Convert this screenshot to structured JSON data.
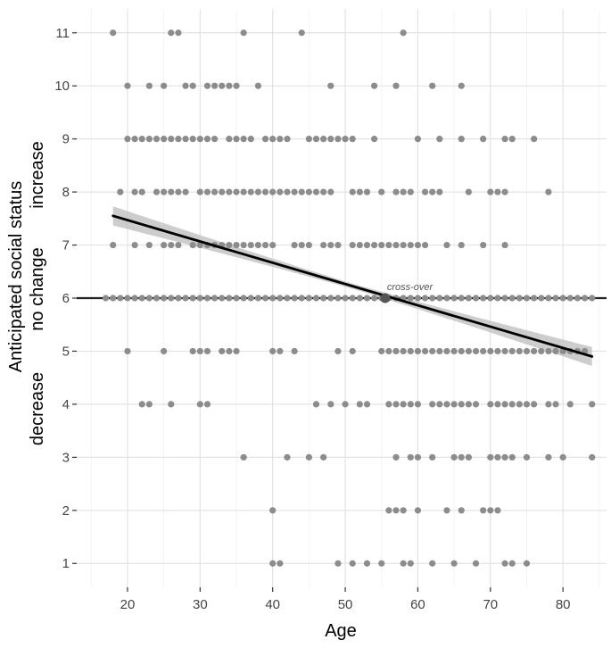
{
  "chart_data": {
    "type": "scatter",
    "xlabel": "Age",
    "ylabel": "Anticipated social status",
    "ylabel_sub": [
      "decrease",
      "no change",
      "increase"
    ],
    "xlim": [
      13,
      86
    ],
    "ylim": [
      0.55,
      11.45
    ],
    "x_ticks": [
      20,
      30,
      40,
      50,
      60,
      70,
      80
    ],
    "y_ticks": [
      1,
      2,
      3,
      4,
      5,
      6,
      7,
      8,
      9,
      10,
      11
    ],
    "grid": true,
    "reference_line": {
      "y": 6
    },
    "regression": {
      "x": [
        18,
        84
      ],
      "y": [
        7.55,
        4.9
      ],
      "ci_halfwidth_end": 0.18
    },
    "annotation": {
      "text": "cross-over",
      "x": 55.5,
      "y": 6
    },
    "colors": {
      "points": "#8c8c8c",
      "line": "#000000",
      "ref_line": "#222222",
      "ribbon": "#c4c4c4",
      "grid": "#e6e6e6"
    },
    "points": [
      {
        "y": 11,
        "x": [
          18,
          26,
          27,
          36,
          44,
          58
        ]
      },
      {
        "y": 10,
        "x": [
          20,
          23,
          25,
          28,
          29,
          31,
          32,
          33,
          34,
          35,
          38,
          48,
          54,
          57,
          62,
          66
        ]
      },
      {
        "y": 9,
        "x": [
          20,
          21,
          22,
          23,
          24,
          25,
          26,
          27,
          28,
          29,
          30,
          31,
          32,
          34,
          35,
          36,
          37,
          39,
          40,
          41,
          42,
          45,
          46,
          47,
          48,
          49,
          50,
          51,
          54,
          60,
          63,
          66,
          69,
          72,
          73,
          76
        ]
      },
      {
        "y": 8,
        "x": [
          19,
          21,
          22,
          24,
          25,
          26,
          27,
          28,
          30,
          31,
          32,
          33,
          34,
          35,
          36,
          37,
          38,
          39,
          40,
          41,
          42,
          43,
          44,
          45,
          46,
          47,
          48,
          51,
          52,
          53,
          55,
          57,
          58,
          59,
          61,
          62,
          63,
          67,
          70,
          71,
          72,
          78
        ]
      },
      {
        "y": 7,
        "x": [
          18,
          21,
          23,
          25,
          26,
          27,
          29,
          30,
          31,
          32,
          33,
          34,
          35,
          36,
          37,
          38,
          39,
          40,
          43,
          44,
          45,
          47,
          48,
          49,
          51,
          52,
          53,
          54,
          55,
          56,
          57,
          58,
          59,
          60,
          61,
          64,
          66,
          69,
          72
        ]
      },
      {
        "y": 6,
        "x": [
          17,
          18,
          19,
          20,
          21,
          22,
          23,
          24,
          25,
          26,
          27,
          28,
          29,
          30,
          31,
          32,
          33,
          34,
          35,
          36,
          37,
          38,
          39,
          40,
          41,
          42,
          43,
          44,
          45,
          46,
          47,
          48,
          49,
          50,
          51,
          52,
          53,
          54,
          55,
          56,
          57,
          58,
          59,
          60,
          61,
          62,
          63,
          64,
          65,
          66,
          67,
          68,
          69,
          70,
          71,
          72,
          73,
          74,
          75,
          76,
          77,
          78,
          79,
          80,
          81,
          82,
          83,
          84
        ]
      },
      {
        "y": 5,
        "x": [
          20,
          25,
          29,
          30,
          31,
          33,
          34,
          35,
          40,
          41,
          43,
          49,
          51,
          55,
          56,
          57,
          58,
          59,
          60,
          61,
          62,
          63,
          64,
          65,
          66,
          67,
          68,
          69,
          70,
          71,
          72,
          73,
          74,
          75,
          76,
          77,
          78,
          79,
          80,
          81,
          82,
          83
        ]
      },
      {
        "y": 4,
        "x": [
          22,
          23,
          26,
          30,
          31,
          46,
          48,
          50,
          52,
          53,
          56,
          57,
          58,
          59,
          60,
          62,
          63,
          64,
          65,
          66,
          67,
          68,
          70,
          71,
          72,
          73,
          74,
          75,
          76,
          78,
          79,
          81,
          84
        ]
      },
      {
        "y": 3,
        "x": [
          36,
          42,
          45,
          47,
          57,
          59,
          60,
          62,
          65,
          66,
          67,
          70,
          71,
          72,
          73,
          75,
          78,
          80,
          84
        ]
      },
      {
        "y": 2,
        "x": [
          40,
          56,
          57,
          58,
          60,
          64,
          66,
          69,
          70,
          71
        ]
      },
      {
        "y": 1,
        "x": [
          40,
          41,
          49,
          51,
          53,
          55,
          58,
          59,
          62,
          65,
          68,
          72,
          73,
          75
        ]
      }
    ]
  }
}
